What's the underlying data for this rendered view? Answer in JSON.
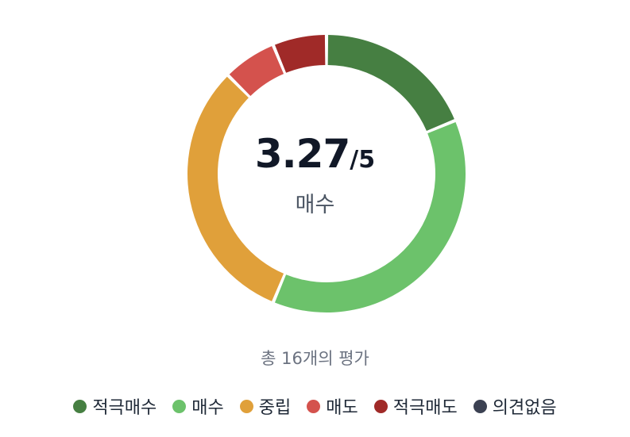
{
  "chart_data": {
    "type": "pie",
    "categories": [
      "적극매수",
      "매수",
      "중립",
      "매도",
      "적극매도",
      "의견없음"
    ],
    "values": [
      3,
      6,
      5,
      1,
      1,
      0
    ],
    "colors": [
      "#467f42",
      "#6cc26b",
      "#e0a03a",
      "#d4524d",
      "#a02a28",
      "#3b4152"
    ],
    "score": "3.27",
    "score_max": "/5",
    "label": "매수",
    "total_text": "총 16개의 평가"
  }
}
